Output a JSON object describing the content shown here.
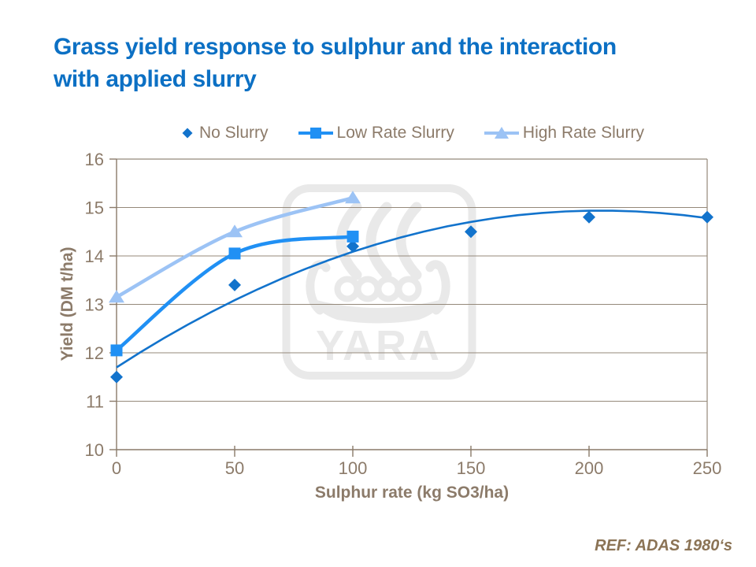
{
  "slide": {
    "title_lines": [
      "Grass yield response to sulphur and the interaction",
      "with applied slurry"
    ],
    "title_color": "#0c70c4",
    "footer": "REF: ADAS 1980‘s",
    "footer_color": "#8b7355"
  },
  "watermark": {
    "text": "YARA",
    "color": "#e9e9e9"
  },
  "chart_data": {
    "type": "scatter-line",
    "title": "",
    "xlabel": "Sulphur rate (kg SO3/ha)",
    "ylabel": "Yield (DM t/ha)",
    "xlim": [
      0,
      250
    ],
    "ylim": [
      10,
      16
    ],
    "x_ticks": [
      0,
      50,
      100,
      150,
      200,
      250
    ],
    "y_ticks": [
      10,
      11,
      12,
      13,
      14,
      15,
      16
    ],
    "grid": "horizontal",
    "legend_position": "top",
    "axis_color": "#8a7a6a",
    "grid_color": "#95897a",
    "text_color": "#8c7b6a",
    "series": [
      {
        "name": "No Slurry",
        "marker": "diamond",
        "color": "#1273cc",
        "line": "trendline",
        "x": [
          0,
          50,
          100,
          150,
          200,
          250
        ],
        "values": [
          11.5,
          13.4,
          14.2,
          14.5,
          14.8,
          14.8
        ],
        "trendline": {
          "type": "quadratic",
          "a": 11.7,
          "b": 0.03157,
          "c": -7.7e-05
        }
      },
      {
        "name": "Low Rate Slurry",
        "marker": "square",
        "color": "#2090f4",
        "line": "smooth",
        "x": [
          0,
          50,
          100
        ],
        "values": [
          12.05,
          14.05,
          14.4
        ]
      },
      {
        "name": "High Rate Slurry",
        "marker": "triangle",
        "color": "#9cc3f5",
        "line": "smooth",
        "x": [
          0,
          50,
          100
        ],
        "values": [
          13.15,
          14.5,
          15.2
        ]
      }
    ]
  }
}
